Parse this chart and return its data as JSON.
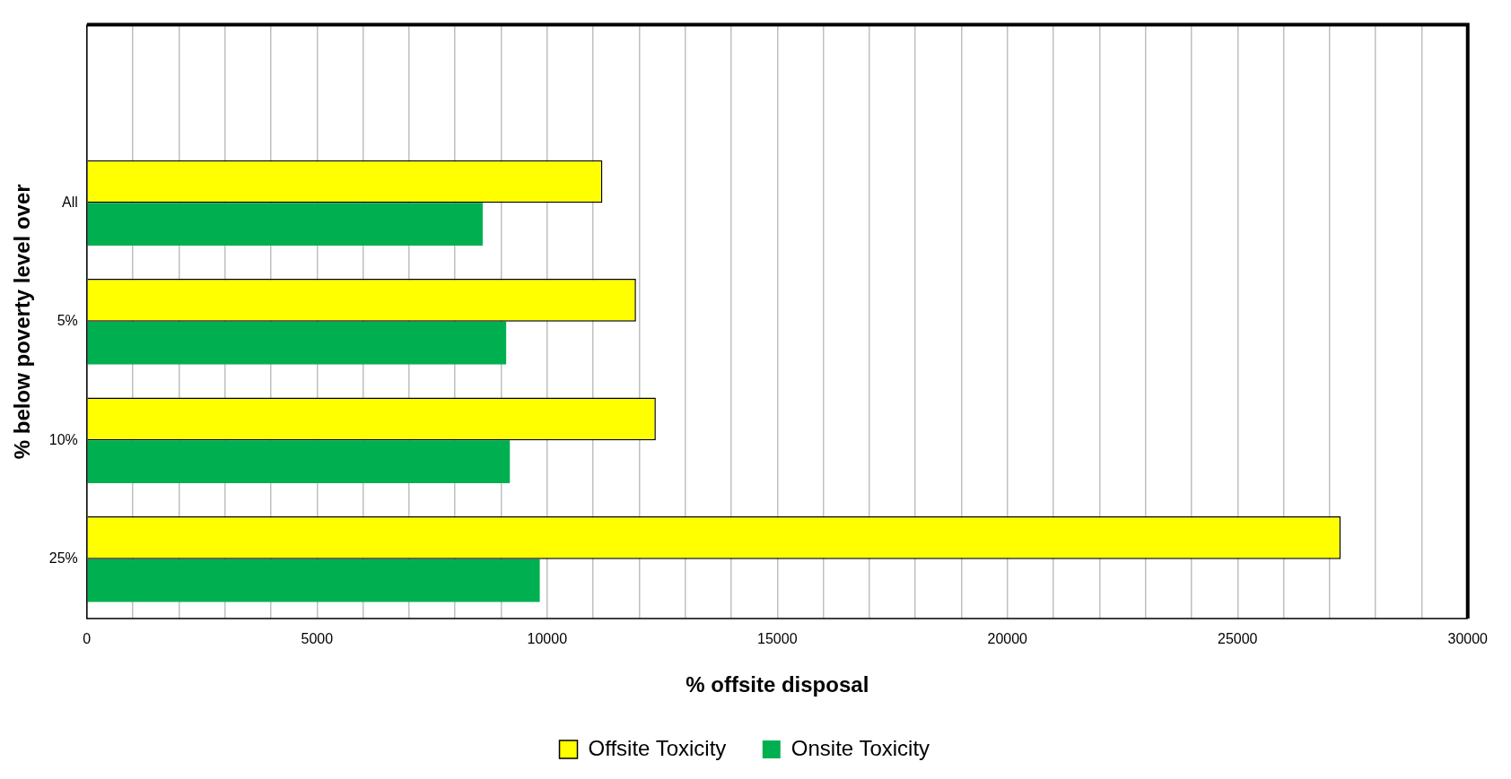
{
  "chart_data": {
    "type": "bar",
    "orientation": "horizontal",
    "xlabel": "% offsite disposal",
    "ylabel": "% below poverty level over",
    "categories": [
      null,
      "All",
      "5%",
      "10%",
      "25%"
    ],
    "series": [
      {
        "name": "Offsite Toxicity",
        "color": "#ffff00",
        "values": [
          null,
          11200,
          11930,
          12360,
          27240
        ]
      },
      {
        "name": "Onsite Toxicity",
        "color": "#00b050",
        "values": [
          null,
          8600,
          9110,
          9190,
          9840
        ]
      }
    ],
    "xlim": [
      0,
      30000
    ],
    "xticks": [
      0,
      {
        "value": 1000,
        "label": null
      },
      {
        "value": 2000,
        "label": null
      },
      {
        "value": 3000,
        "label": null
      },
      {
        "value": 4000,
        "label": null
      },
      5000,
      {
        "value": 6000,
        "label": null
      },
      {
        "value": 7000,
        "label": null
      },
      {
        "value": 8000,
        "label": null
      },
      {
        "value": 9000,
        "label": null
      },
      10000,
      {
        "value": 11000,
        "label": null
      },
      {
        "value": 12000,
        "label": null
      },
      {
        "value": 13000,
        "label": null
      },
      {
        "value": 14000,
        "label": null
      },
      15000,
      {
        "value": 16000,
        "label": null
      },
      {
        "value": 17000,
        "label": null
      },
      {
        "value": 18000,
        "label": null
      },
      {
        "value": 19000,
        "label": null
      },
      20000,
      {
        "value": 21000,
        "label": null
      },
      {
        "value": 22000,
        "label": null
      },
      {
        "value": 23000,
        "label": null
      },
      {
        "value": 24000,
        "label": null
      },
      25000,
      {
        "value": 26000,
        "label": null
      },
      {
        "value": 27000,
        "label": null
      },
      {
        "value": 28000,
        "label": null
      },
      {
        "value": 29000,
        "label": null
      },
      30000
    ],
    "grid": "x",
    "legend": "bottom"
  }
}
